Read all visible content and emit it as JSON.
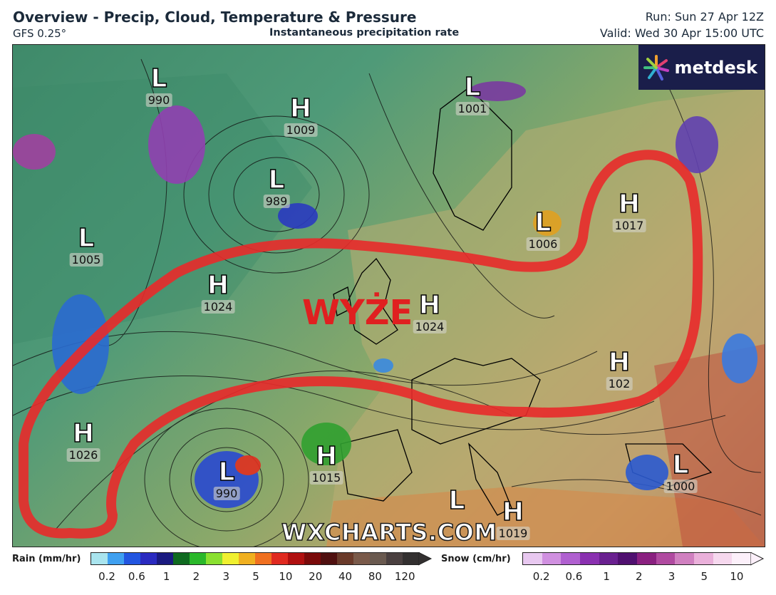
{
  "header": {
    "title": "Overview - Precip, Cloud, Temperature & Pressure",
    "model": "GFS 0.25°",
    "subtitle": "Instantaneous precipitation rate",
    "run": "Run: Sun 27 Apr 12Z",
    "valid": "Valid: Wed 30 Apr 15:00 UTC"
  },
  "logo": {
    "text": "metdesk"
  },
  "watermark": "WXCHARTS.COM",
  "annotation": "WYŻE",
  "pressure_centres": [
    {
      "type": "L",
      "value": "990"
    },
    {
      "type": "H",
      "value": "1009"
    },
    {
      "type": "L",
      "value": "989"
    },
    {
      "type": "L",
      "value": "1001"
    },
    {
      "type": "L",
      "value": "1005"
    },
    {
      "type": "H",
      "value": "1024"
    },
    {
      "type": "H",
      "value": "1024"
    },
    {
      "type": "L",
      "value": "1006"
    },
    {
      "type": "H",
      "value": "1017"
    },
    {
      "type": "H",
      "value": "102"
    },
    {
      "type": "H",
      "value": "1026"
    },
    {
      "type": "L",
      "value": "990"
    },
    {
      "type": "H",
      "value": "1015"
    },
    {
      "type": "L",
      "value": ""
    },
    {
      "type": "H",
      "value": "1019"
    },
    {
      "type": "L",
      "value": "1000"
    }
  ],
  "legend": {
    "rain_label": "Rain (mm/hr)",
    "rain_ticks": [
      "0.2",
      "0.6",
      "1",
      "2",
      "3",
      "5",
      "10",
      "20",
      "40",
      "80",
      "120"
    ],
    "rain_colors": [
      "#a9e4ee",
      "#3fa0f0",
      "#2255e0",
      "#2a2ac0",
      "#1a1a80",
      "#0f6a20",
      "#2ab82a",
      "#8ae030",
      "#f0f030",
      "#f0b020",
      "#f07020",
      "#e02a20",
      "#b01010",
      "#7a0a0a",
      "#501010",
      "#6a3a2a",
      "#7a5a4a",
      "#6a5a50",
      "#4a4040",
      "#333030"
    ],
    "snow_label": "Snow (cm/hr)",
    "snow_ticks": [
      "0.2",
      "0.6",
      "1",
      "2",
      "3",
      "5",
      "10"
    ],
    "snow_colors": [
      "#e8c8f0",
      "#d090e0",
      "#b060d0",
      "#8a30b0",
      "#6a2090",
      "#501070",
      "#8a2080",
      "#b04aa0",
      "#d080c0",
      "#eab0da",
      "#f6d8ee",
      "#fcf0fa"
    ]
  }
}
